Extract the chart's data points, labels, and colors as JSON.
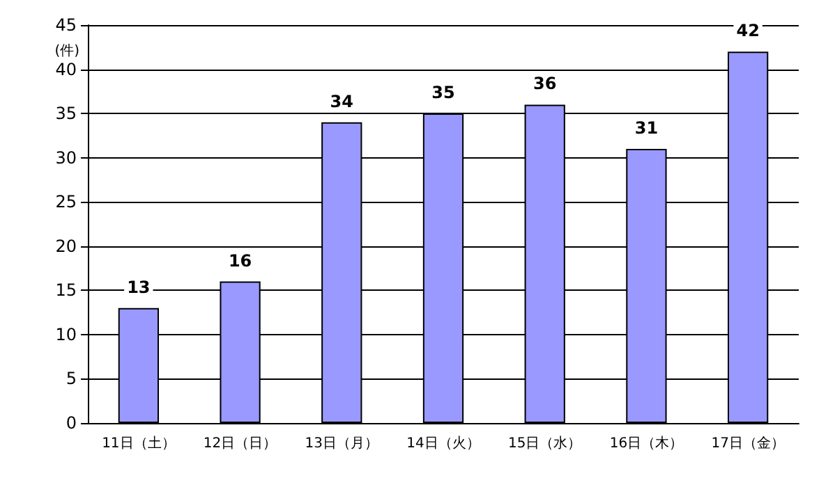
{
  "chart_data": {
    "type": "bar",
    "ylabel": "(件)",
    "categories": [
      "11日（土）",
      "12日（日）",
      "13日（月）",
      "14日（火）",
      "15日（水）",
      "16日（木）",
      "17日（金）"
    ],
    "values": [
      13,
      16,
      34,
      35,
      36,
      31,
      42
    ],
    "color": "#9999ff",
    "ylim": [
      0,
      45
    ],
    "yticks": [
      0,
      5,
      10,
      15,
      20,
      25,
      30,
      35,
      40,
      45
    ],
    "grid": "y",
    "data_labels": true
  }
}
